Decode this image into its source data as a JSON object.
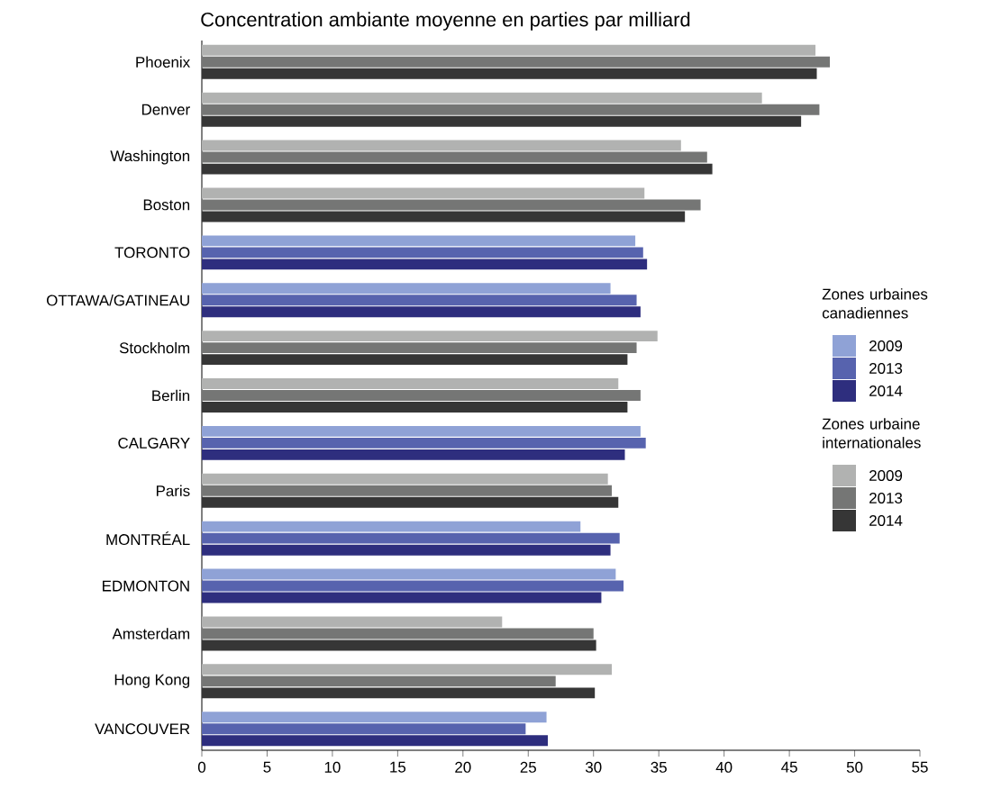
{
  "chart_data": {
    "type": "bar",
    "orientation": "horizontal",
    "title": "Concentration ambiante moyenne en parties par milliard",
    "categories": [
      "Phoenix",
      "Denver",
      "Washington",
      "Boston",
      "TORONTO",
      "OTTAWA/GATINEAU",
      "Stockholm",
      "Berlin",
      "CALGARY",
      "Paris",
      "MONTRÉAL",
      "EDMONTON",
      "Amsterdam",
      "Hong Kong",
      "VANCOUVER"
    ],
    "series": [
      {
        "name": "2009",
        "color": "#8fa2d6",
        "values": [
          null,
          null,
          null,
          null,
          33.2,
          31.3,
          null,
          null,
          33.6,
          null,
          29.0,
          31.7,
          null,
          null,
          26.4
        ]
      },
      {
        "name": "2013",
        "color": "#5763ae",
        "values": [
          null,
          null,
          null,
          null,
          33.8,
          33.3,
          null,
          null,
          34.0,
          null,
          32.0,
          32.3,
          null,
          null,
          24.8
        ]
      },
      {
        "name": "2014",
        "color": "#2e2e7e",
        "values": [
          null,
          null,
          null,
          null,
          34.1,
          33.6,
          null,
          null,
          32.4,
          null,
          31.3,
          30.6,
          null,
          null,
          26.5
        ]
      },
      {
        "name": "2009",
        "color": "#b1b2b1",
        "values": [
          47.0,
          42.9,
          36.7,
          33.9,
          null,
          null,
          34.9,
          31.9,
          null,
          31.1,
          null,
          null,
          23.0,
          31.4,
          null
        ]
      },
      {
        "name": "2013",
        "color": "#757675",
        "values": [
          48.1,
          47.3,
          38.7,
          38.2,
          null,
          null,
          33.3,
          33.6,
          null,
          31.4,
          null,
          null,
          30.0,
          27.1,
          null
        ]
      },
      {
        "name": "2014",
        "color": "#363636",
        "values": [
          47.1,
          45.9,
          39.1,
          37.0,
          null,
          null,
          32.6,
          32.6,
          null,
          31.9,
          null,
          null,
          30.2,
          30.1,
          null
        ]
      }
    ],
    "annotations": [
      "Zones urbaines canadiennes",
      "Zones urbaine internationales"
    ],
    "xlim": [
      0,
      55
    ],
    "xticks": [
      0,
      5,
      10,
      15,
      20,
      25,
      30,
      35,
      40,
      45,
      50,
      55
    ],
    "grid": false,
    "legend": "right"
  }
}
